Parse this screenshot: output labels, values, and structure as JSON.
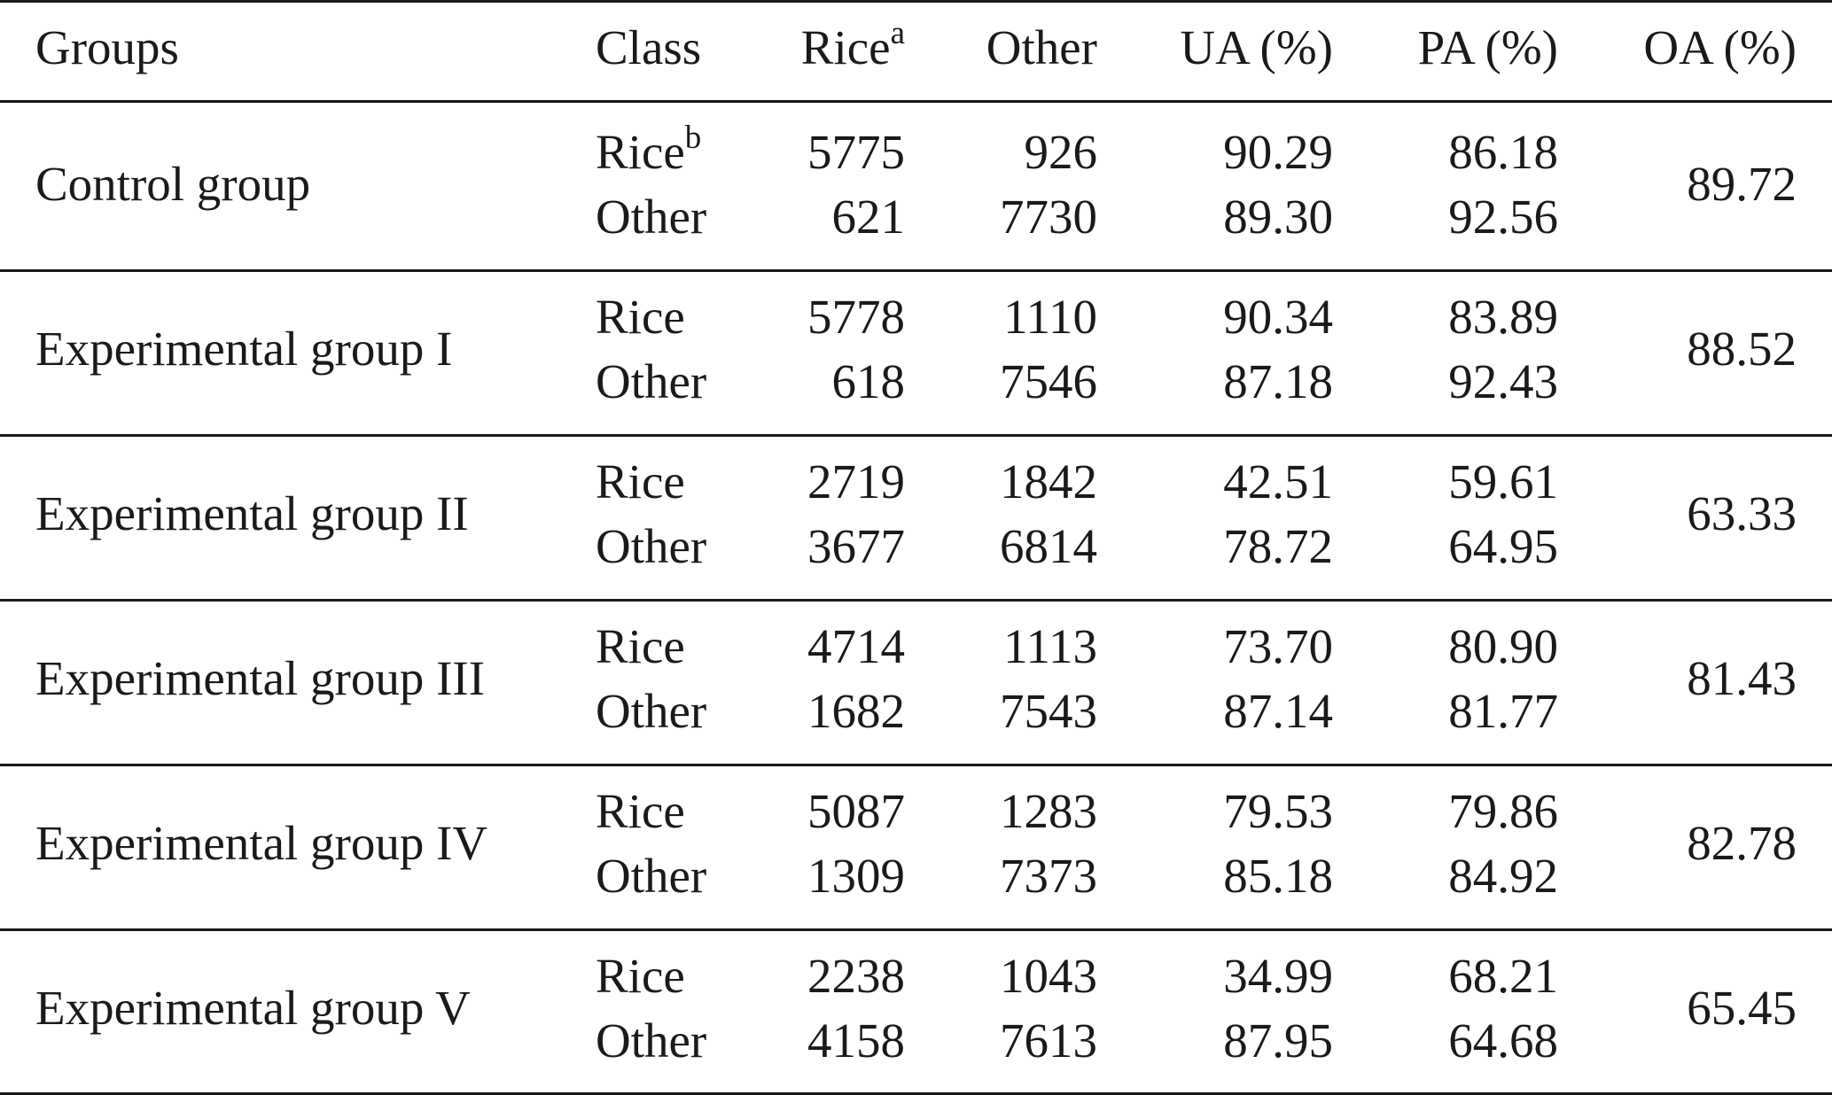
{
  "table": {
    "header": {
      "groups": "Groups",
      "class": "Class",
      "rice": "Rice",
      "rice_sup": "a",
      "other": "Other",
      "ua": "UA (%)",
      "pa": "PA (%)",
      "oa": "OA (%)"
    },
    "rows": [
      {
        "group": "Control group",
        "oa": "89.72",
        "classes": [
          {
            "class": "Rice",
            "sup": "b",
            "rice": "5775",
            "other": "926",
            "ua": "90.29",
            "pa": "86.18"
          },
          {
            "class": "Other",
            "sup": "",
            "rice": "621",
            "other": "7730",
            "ua": "89.30",
            "pa": "92.56"
          }
        ]
      },
      {
        "group": "Experimental group I",
        "oa": "88.52",
        "classes": [
          {
            "class": "Rice",
            "sup": "",
            "rice": "5778",
            "other": "1110",
            "ua": "90.34",
            "pa": "83.89"
          },
          {
            "class": "Other",
            "sup": "",
            "rice": "618",
            "other": "7546",
            "ua": "87.18",
            "pa": "92.43"
          }
        ]
      },
      {
        "group": "Experimental group II",
        "oa": "63.33",
        "classes": [
          {
            "class": "Rice",
            "sup": "",
            "rice": "2719",
            "other": "1842",
            "ua": "42.51",
            "pa": "59.61"
          },
          {
            "class": "Other",
            "sup": "",
            "rice": "3677",
            "other": "6814",
            "ua": "78.72",
            "pa": "64.95"
          }
        ]
      },
      {
        "group": "Experimental group III",
        "oa": "81.43",
        "classes": [
          {
            "class": "Rice",
            "sup": "",
            "rice": "4714",
            "other": "1113",
            "ua": "73.70",
            "pa": "80.90"
          },
          {
            "class": "Other",
            "sup": "",
            "rice": "1682",
            "other": "7543",
            "ua": "87.14",
            "pa": "81.77"
          }
        ]
      },
      {
        "group": "Experimental group IV",
        "oa": "82.78",
        "classes": [
          {
            "class": "Rice",
            "sup": "",
            "rice": "5087",
            "other": "1283",
            "ua": "79.53",
            "pa": "79.86"
          },
          {
            "class": "Other",
            "sup": "",
            "rice": "1309",
            "other": "7373",
            "ua": "85.18",
            "pa": "84.92"
          }
        ]
      },
      {
        "group": "Experimental group V",
        "oa": "65.45",
        "classes": [
          {
            "class": "Rice",
            "sup": "",
            "rice": "2238",
            "other": "1043",
            "ua": "34.99",
            "pa": "68.21"
          },
          {
            "class": "Other",
            "sup": "",
            "rice": "4158",
            "other": "7613",
            "ua": "87.95",
            "pa": "64.68"
          }
        ]
      }
    ]
  }
}
